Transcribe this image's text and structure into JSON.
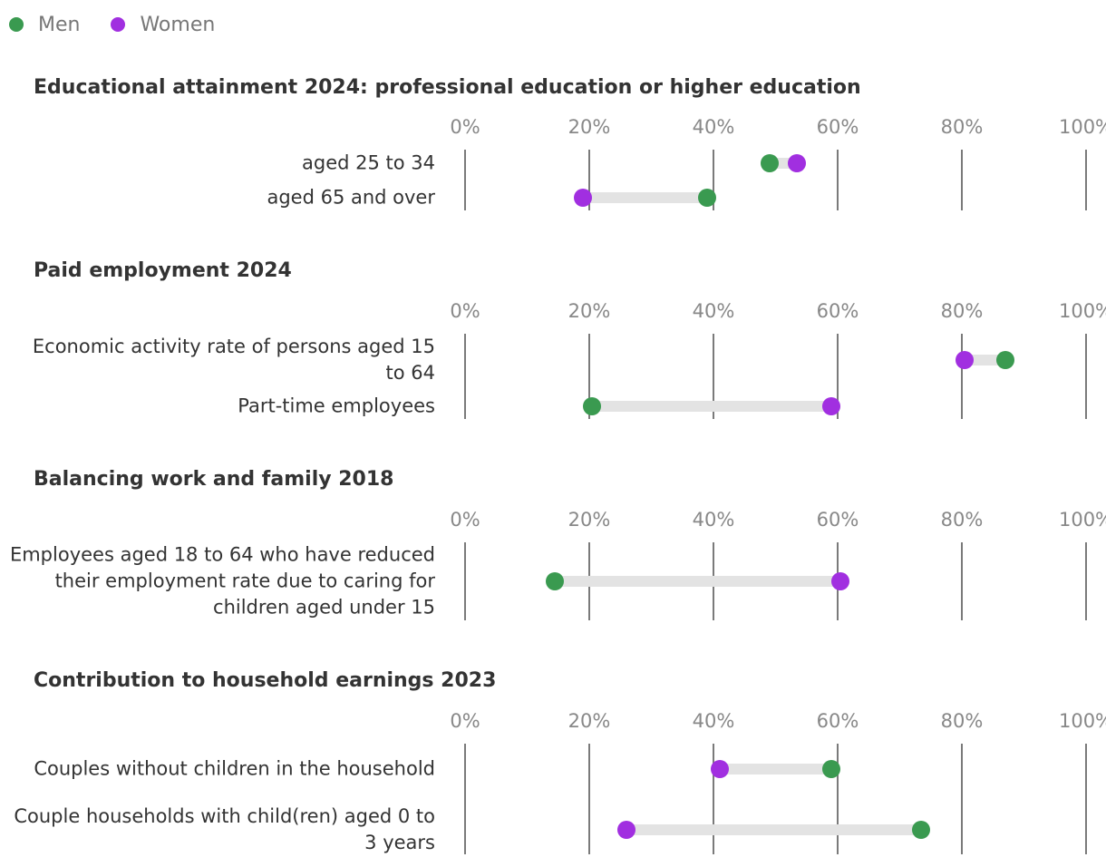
{
  "colors": {
    "men": "#3a9a50",
    "women": "#a12fe0"
  },
  "chart_data": {
    "type": "dumbbell",
    "legend": {
      "position": "top-left",
      "entries": [
        "Men",
        "Women"
      ]
    },
    "series": [
      {
        "name": "Men",
        "color": "#3a9a50"
      },
      {
        "name": "Women",
        "color": "#a12fe0"
      }
    ],
    "xlim": [
      0,
      100
    ],
    "ticks": [
      "0%",
      "20%",
      "40%",
      "60%",
      "80%",
      "100%"
    ],
    "tick_values": [
      0,
      20,
      40,
      60,
      80,
      100
    ],
    "grid": true,
    "panels": [
      {
        "title": "Educational attainment 2024: professional education or higher education",
        "rows": [
          {
            "label": "aged 25 to 34",
            "men": 49,
            "women": 53.5
          },
          {
            "label": "aged 65 and over",
            "men": 39,
            "women": 19
          }
        ]
      },
      {
        "title": "Paid employment 2024",
        "rows": [
          {
            "label": "Economic activity rate of persons aged 15 to 64",
            "men": 87,
            "women": 80.5
          },
          {
            "label": "Part-time employees",
            "men": 20.5,
            "women": 59
          }
        ]
      },
      {
        "title": "Balancing work and family 2018",
        "rows": [
          {
            "label": "Employees aged 18 to 64 who have reduced their employment rate due to caring for children aged under 15",
            "men": 14.5,
            "women": 60.5
          }
        ]
      },
      {
        "title": "Contribution to household earnings 2023",
        "rows": [
          {
            "label": "Couples without children in the household",
            "men": 59,
            "women": 41
          },
          {
            "label": "Couple households with child(ren) aged 0 to 3 years",
            "men": 73.5,
            "women": 26
          }
        ]
      }
    ]
  }
}
